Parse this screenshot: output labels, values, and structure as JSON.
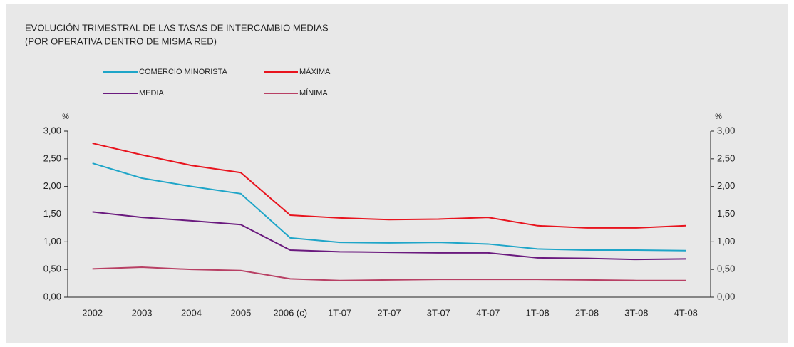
{
  "chart_data": {
    "type": "line",
    "title": "EVOLUCIÓN TRIMESTRAL DE LAS TASAS DE INTERCAMBIO MEDIAS",
    "subtitle": "(POR OPERATIVA DENTRO DE MISMA RED)",
    "ylabel": "%",
    "y2label": "%",
    "categories": [
      "2002",
      "2003",
      "2004",
      "2005",
      "2006 (c)",
      "1T-07",
      "2T-07",
      "3T-07",
      "4T-07",
      "1T-08",
      "2T-08",
      "3T-08",
      "4T-08"
    ],
    "series": [
      {
        "name": "COMERCIO MINORISTA",
        "color": "#1ea5c8",
        "values": [
          2.42,
          2.15,
          2.0,
          1.87,
          1.07,
          0.99,
          0.98,
          0.99,
          0.96,
          0.87,
          0.85,
          0.85,
          0.84
        ]
      },
      {
        "name": "MÁXIMA",
        "color": "#e8141e",
        "values": [
          2.78,
          2.57,
          2.38,
          2.25,
          1.48,
          1.43,
          1.4,
          1.41,
          1.44,
          1.29,
          1.25,
          1.25,
          1.29
        ]
      },
      {
        "name": "MEDIA",
        "color": "#6a1a7e",
        "values": [
          1.54,
          1.44,
          1.38,
          1.31,
          0.85,
          0.82,
          0.81,
          0.8,
          0.8,
          0.71,
          0.7,
          0.68,
          0.69
        ]
      },
      {
        "name": "MÍNIMA",
        "color": "#b84064",
        "values": [
          0.51,
          0.54,
          0.5,
          0.48,
          0.33,
          0.3,
          0.31,
          0.32,
          0.32,
          0.32,
          0.31,
          0.3,
          0.3
        ]
      }
    ],
    "ylim": [
      0,
      3
    ],
    "yticks": [
      {
        "value": 0,
        "label": "0,00"
      },
      {
        "value": 0.5,
        "label": "0,50"
      },
      {
        "value": 1,
        "label": "1,00"
      },
      {
        "value": 1.5,
        "label": "1,50"
      },
      {
        "value": 2,
        "label": "2,00"
      },
      {
        "value": 2.5,
        "label": "2,50"
      },
      {
        "value": 3,
        "label": "3,00"
      }
    ],
    "y2lim": [
      0,
      3
    ],
    "y2ticks": [
      {
        "value": 0,
        "label": "0,00"
      },
      {
        "value": 0.5,
        "label": "0,50"
      },
      {
        "value": 1,
        "label": "1,00"
      },
      {
        "value": 1.5,
        "label": "1,50"
      },
      {
        "value": 2,
        "label": "2,00"
      },
      {
        "value": 2.5,
        "label": "2,50"
      },
      {
        "value": 3,
        "label": "3,00"
      }
    ],
    "grid": false
  }
}
